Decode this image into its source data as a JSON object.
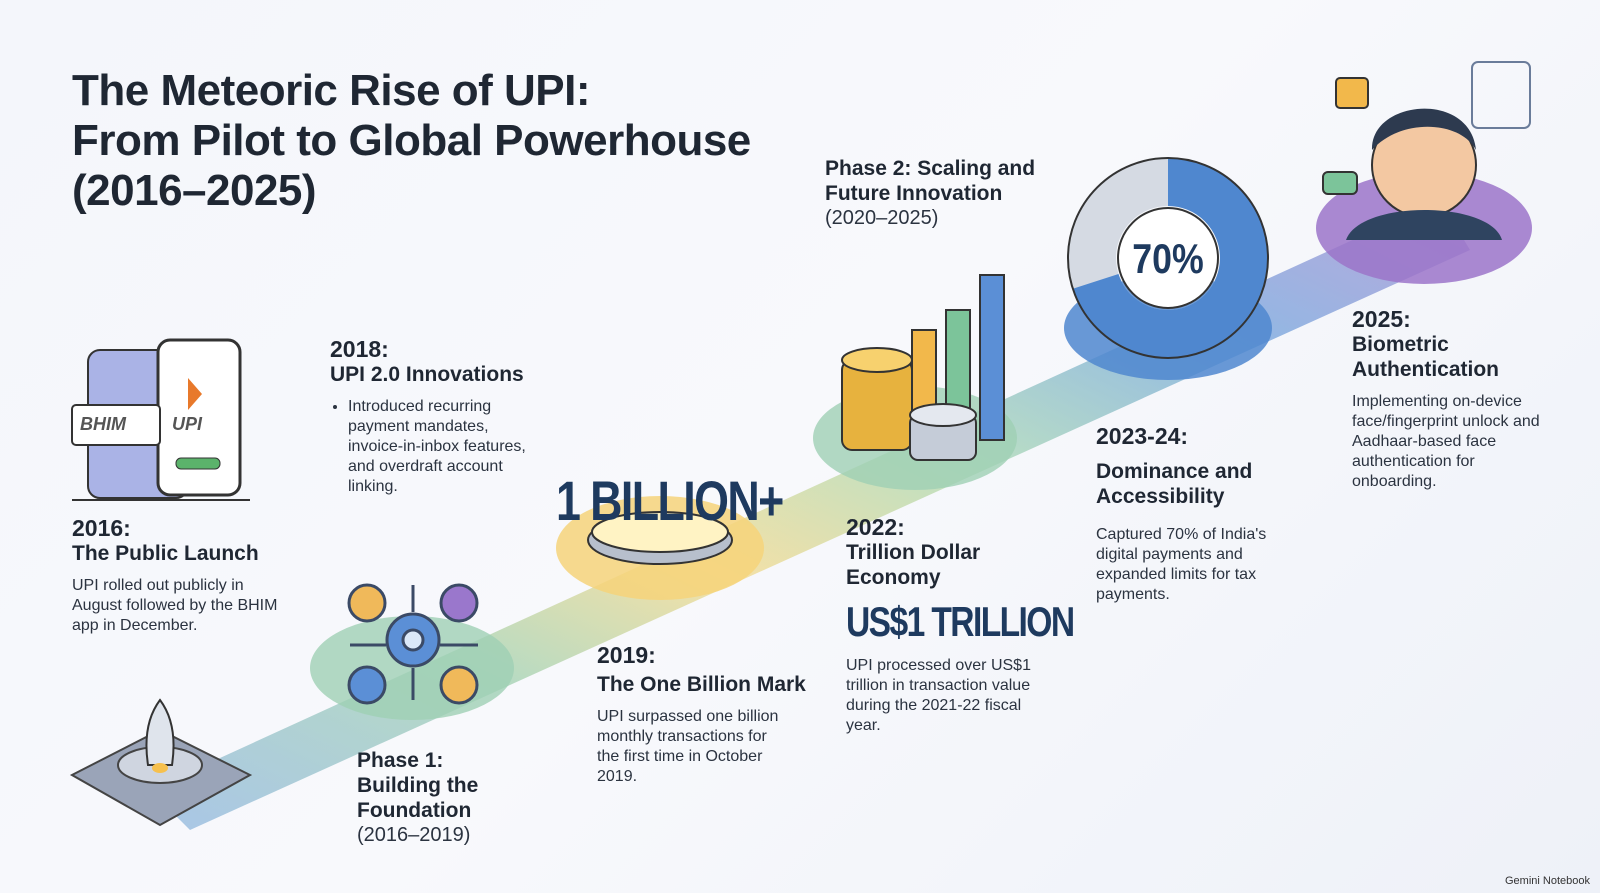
{
  "header": {
    "title_lines": [
      "The Meteoric Rise of UPI:",
      "From Pilot to Global Powerhouse",
      "(2016–2025)"
    ]
  },
  "phases": [
    {
      "heading": "Phase 1:",
      "name": "Building the Foundation",
      "period": "(2016–2019)"
    },
    {
      "heading": "Phase 2: Scaling and Future Innovation",
      "period": "(2020–2025)"
    }
  ],
  "logos": [
    "BHIM",
    "UPI"
  ],
  "milestones": [
    {
      "year": "2016:",
      "title": "The Public Launch",
      "text": "UPI rolled out publicly in August followed by the BHIM app in December."
    },
    {
      "year": "2018:",
      "title": "UPI 2.0 Innovations",
      "bullet": "Introduced recurring payment mandates, invoice-in-inbox features, and overdraft account linking."
    },
    {
      "year": "2019:",
      "title": "The One Billion Mark",
      "highlight": "1 BILLION+",
      "text": "UPI surpassed one billion monthly transactions for the first time in October 2019."
    },
    {
      "year": "2022:",
      "title": "Trillion Dollar Economy",
      "highlight": "US$1 TRILLION",
      "text": "UPI processed over US$1 trillion in transaction value during the 2021-22 fiscal year."
    },
    {
      "year": "2023-24:",
      "title": "Dominance and Accessibility",
      "text": "Captured 70% of India's digital payments and expanded limits for tax payments."
    },
    {
      "year": "2025:",
      "title": "Biometric Authentication",
      "text": "Implementing on-device face/fingerprint unlock and Aadhaar-based face authentication for onboarding."
    }
  ],
  "donut": {
    "value": 70,
    "label": "70%"
  },
  "footer": {
    "watermark": "Gemini Notebook"
  }
}
